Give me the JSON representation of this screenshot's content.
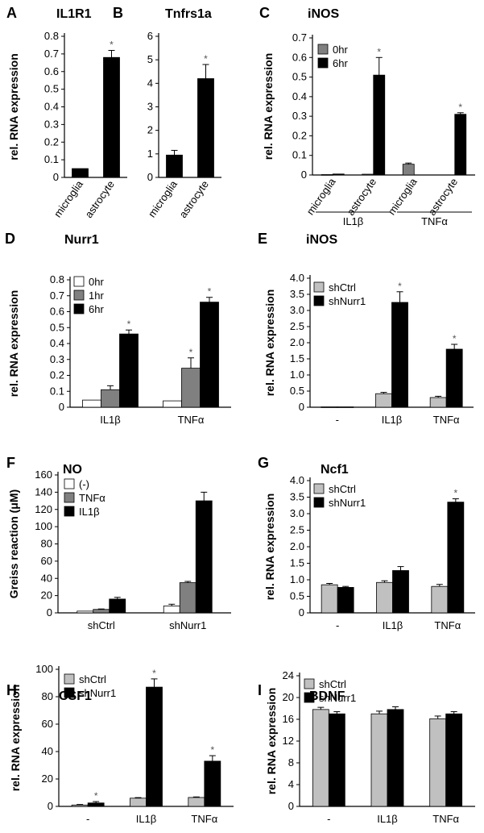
{
  "colors": {
    "white": "#ffffff",
    "light": "#c0c0c0",
    "mid": "#808080",
    "black": "#000000"
  },
  "chart_data": [
    {
      "panel": "A",
      "title": "IL1R1",
      "type": "bar",
      "ylabel": "rel. RNA expression",
      "ylim": [
        0,
        0.8
      ],
      "yticks": [
        "0",
        "0.1",
        "0.2",
        "0.3",
        "0.4",
        "0.5",
        "0.6",
        "0.7",
        "0.8"
      ],
      "categories": [
        "microglia",
        "astrocyte"
      ],
      "rotate_labels": true,
      "series": [
        {
          "color": "black",
          "values": [
            0.05,
            0.68
          ],
          "err": [
            0,
            0.04
          ],
          "sig": [
            false,
            true
          ]
        }
      ]
    },
    {
      "panel": "B",
      "title": "Tnfrs1a",
      "type": "bar",
      "ylabel": "",
      "ylim": [
        0,
        6
      ],
      "yticks": [
        "0",
        "1",
        "2",
        "3",
        "4",
        "5",
        "6"
      ],
      "categories": [
        "microglia",
        "astrocyte"
      ],
      "rotate_labels": true,
      "series": [
        {
          "color": "black",
          "values": [
            0.95,
            4.2
          ],
          "err": [
            0.2,
            0.6
          ],
          "sig": [
            false,
            true
          ]
        }
      ]
    },
    {
      "panel": "C",
      "title": "iNOS",
      "type": "bar",
      "ylabel": "rel. RNA expression",
      "ylim": [
        0,
        0.7
      ],
      "yticks": [
        "0",
        "0.1",
        "0.2",
        "0.3",
        "0.4",
        "0.5",
        "0.6",
        "0.7"
      ],
      "categories": [
        "microglia",
        "astrocyte",
        "microglia",
        "astrocyte"
      ],
      "rotate_labels": true,
      "groups": [
        "IL1β",
        "TNFα"
      ],
      "legend": [
        "0hr",
        "6hr"
      ],
      "series": [
        {
          "name": "0hr",
          "color": "mid",
          "values": [
            0.002,
            0.004,
            0.055,
            0.0
          ],
          "err": [
            0,
            0,
            0.006,
            0
          ],
          "sig": [
            false,
            false,
            false,
            false
          ]
        },
        {
          "name": "6hr",
          "color": "black",
          "values": [
            0.005,
            0.51,
            0.0,
            0.31
          ],
          "err": [
            0,
            0.09,
            0,
            0.008
          ],
          "sig": [
            false,
            true,
            false,
            true
          ]
        }
      ]
    },
    {
      "panel": "D",
      "title": "Nurr1",
      "type": "bar",
      "ylabel": "rel. RNA expression",
      "ylim": [
        0,
        0.8
      ],
      "yticks": [
        "0",
        "0.1",
        "0.2",
        "0.3",
        "0.4",
        "0.5",
        "0.6",
        "0.7",
        "0.8"
      ],
      "categories": [
        "IL1β",
        "TNFα"
      ],
      "legend": [
        "0hr",
        "1hr",
        "6hr"
      ],
      "series": [
        {
          "name": "0hr",
          "color": "white",
          "values": [
            0.045,
            0.04
          ],
          "err": [
            0,
            0
          ],
          "sig": [
            false,
            false
          ]
        },
        {
          "name": "1hr",
          "color": "mid",
          "values": [
            0.11,
            0.245
          ],
          "err": [
            0.025,
            0.065
          ],
          "sig": [
            false,
            true
          ]
        },
        {
          "name": "6hr",
          "color": "black",
          "values": [
            0.46,
            0.66
          ],
          "err": [
            0.025,
            0.03
          ],
          "sig": [
            true,
            true
          ]
        }
      ]
    },
    {
      "panel": "E",
      "title": "iNOS",
      "type": "bar",
      "ylabel": "rel. RNA expression",
      "ylim": [
        0,
        4.0
      ],
      "yticks": [
        "0",
        "0.5",
        "1.0",
        "1.5",
        "2.0",
        "2.5",
        "3.0",
        "3.5",
        "4.0"
      ],
      "categories": [
        "-",
        "IL1β",
        "TNFα"
      ],
      "legend": [
        "shCtrl",
        "shNurr1"
      ],
      "series": [
        {
          "name": "shCtrl",
          "color": "light",
          "values": [
            0.01,
            0.42,
            0.3
          ],
          "err": [
            0,
            0.04,
            0.04
          ],
          "sig": [
            false,
            false,
            false
          ]
        },
        {
          "name": "shNurr1",
          "color": "black",
          "values": [
            0.01,
            3.25,
            1.8
          ],
          "err": [
            0,
            0.33,
            0.15
          ],
          "sig": [
            false,
            true,
            true
          ]
        }
      ]
    },
    {
      "panel": "F",
      "title": "NO",
      "type": "bar",
      "ylabel": "Greiss reaction (μM)",
      "ylim": [
        0,
        160
      ],
      "yticks": [
        "0",
        "20",
        "40",
        "60",
        "80",
        "100",
        "120",
        "140",
        "160"
      ],
      "categories": [
        "shCtrl",
        "shNurr1"
      ],
      "legend": [
        "(-)",
        "TNFα",
        "IL1β"
      ],
      "series": [
        {
          "name": "(-)",
          "color": "white",
          "values": [
            2,
            8
          ],
          "err": [
            0,
            2
          ],
          "sig": [
            false,
            false
          ]
        },
        {
          "name": "TNFα",
          "color": "mid",
          "values": [
            4,
            35
          ],
          "err": [
            0.5,
            1.5
          ],
          "sig": [
            false,
            false
          ]
        },
        {
          "name": "IL1β",
          "color": "black",
          "values": [
            16,
            130
          ],
          "err": [
            2,
            10
          ],
          "sig": [
            false,
            false
          ]
        }
      ]
    },
    {
      "panel": "G",
      "title": "Ncf1",
      "type": "bar",
      "ylabel": "rel. RNA expression",
      "ylim": [
        0,
        4.0
      ],
      "yticks": [
        "0",
        "0.5",
        "1.0",
        "1.5",
        "2.0",
        "2.5",
        "3.0",
        "3.5",
        "4.0"
      ],
      "categories": [
        "-",
        "IL1β",
        "TNFα"
      ],
      "legend": [
        "shCtrl",
        "shNurr1"
      ],
      "series": [
        {
          "name": "shCtrl",
          "color": "light",
          "values": [
            0.85,
            0.92,
            0.8
          ],
          "err": [
            0.04,
            0.05,
            0.06
          ],
          "sig": [
            false,
            false,
            false
          ]
        },
        {
          "name": "shNurr1",
          "color": "black",
          "values": [
            0.77,
            1.28,
            3.35
          ],
          "err": [
            0.03,
            0.12,
            0.1
          ],
          "sig": [
            false,
            false,
            true
          ]
        }
      ]
    },
    {
      "panel": "H",
      "title": "CSF1",
      "type": "bar",
      "ylabel": "rel. RNA expression",
      "ylim": [
        0,
        100
      ],
      "yticks": [
        "0",
        "20",
        "40",
        "60",
        "80",
        "100"
      ],
      "categories": [
        "-",
        "IL1β",
        "TNFα"
      ],
      "legend": [
        "shCtrl",
        "shNurr1"
      ],
      "series": [
        {
          "name": "shCtrl",
          "color": "light",
          "values": [
            1,
            6,
            6.5
          ],
          "err": [
            0.4,
            0.4,
            0.4
          ],
          "sig": [
            false,
            false,
            false
          ]
        },
        {
          "name": "shNurr1",
          "color": "black",
          "values": [
            2.5,
            87,
            33
          ],
          "err": [
            1,
            6,
            4
          ],
          "sig": [
            true,
            true,
            true
          ]
        }
      ]
    },
    {
      "panel": "I",
      "title": "BDNF",
      "type": "bar",
      "ylabel": "rel. RNA expression",
      "ylim": [
        0,
        24
      ],
      "yticks": [
        "0",
        "4",
        "8",
        "12",
        "16",
        "20",
        "24"
      ],
      "categories": [
        "-",
        "IL1β",
        "TNFα"
      ],
      "legend": [
        "shCtrl",
        "shNurr1"
      ],
      "series": [
        {
          "name": "shCtrl",
          "color": "light",
          "values": [
            17.8,
            17.0,
            16.1
          ],
          "err": [
            0.4,
            0.5,
            0.5
          ],
          "sig": [
            false,
            false,
            false
          ]
        },
        {
          "name": "shNurr1",
          "color": "black",
          "values": [
            17.0,
            17.8,
            17.0
          ],
          "err": [
            0.4,
            0.5,
            0.4
          ],
          "sig": [
            false,
            false,
            false
          ]
        }
      ]
    }
  ]
}
